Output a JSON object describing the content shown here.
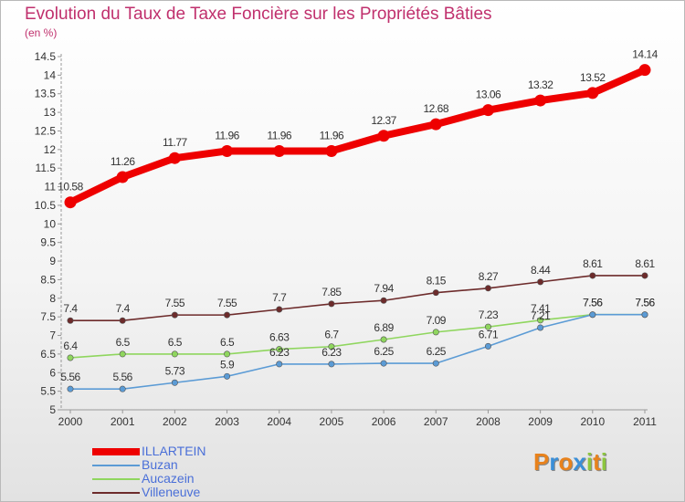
{
  "title": "Evolution du Taux de Taxe Foncière sur les Propriétés Bâties",
  "unit_label": "(en %)",
  "brand": {
    "letters": [
      "P",
      "r",
      "o",
      "x",
      "i",
      "t",
      "i"
    ],
    "colors": [
      "#e8821c",
      "#3a8fd8",
      "#e8821c",
      "#3a8fd8",
      "#8cc63f",
      "#e8821c",
      "#8cc63f"
    ]
  },
  "chart_data": {
    "type": "line",
    "title": "Evolution du Taux de Taxe Foncière sur les Propriétés Bâties",
    "ylabel": "(en %)",
    "xlabel": "",
    "ylim": [
      5,
      14.5
    ],
    "x": [
      "2000",
      "2001",
      "2002",
      "2003",
      "2004",
      "2005",
      "2006",
      "2007",
      "2008",
      "2009",
      "2010",
      "2011"
    ],
    "yticks": [
      "5",
      "5.5",
      "6",
      "6.5",
      "7",
      "7.5",
      "8",
      "8.5",
      "9",
      "9.5",
      "10",
      "10.5",
      "11",
      "11.5",
      "12",
      "12.5",
      "13",
      "13.5",
      "14",
      "14.5"
    ],
    "series": [
      {
        "name": "ILLARTEIN",
        "color": "#ee0000",
        "values": [
          10.58,
          11.26,
          11.77,
          11.96,
          11.96,
          11.96,
          12.37,
          12.68,
          13.06,
          13.32,
          13.52,
          14.14
        ],
        "labels": [
          "10.58",
          "11.26",
          "11.77",
          "11.96",
          "11.96",
          "11.96",
          "12.37",
          "12.68",
          "13.06",
          "13.32",
          "13.52",
          "14.14"
        ]
      },
      {
        "name": "Buzan",
        "color": "#5b9bd5",
        "values": [
          5.56,
          5.56,
          5.73,
          5.9,
          6.23,
          6.23,
          6.25,
          6.25,
          6.71,
          7.21,
          7.56,
          7.56
        ],
        "labels": [
          "5.56",
          "5.56",
          "5.73",
          "5.9",
          "6.23",
          "6.23",
          "6.25",
          "6.25",
          "6.71",
          "7.21",
          "7.56",
          "7.56"
        ]
      },
      {
        "name": "Aucazein",
        "color": "#8fd65e",
        "values": [
          6.4,
          6.5,
          6.5,
          6.5,
          6.63,
          6.7,
          6.89,
          7.09,
          7.23,
          7.41,
          7.56,
          7.56
        ],
        "labels": [
          "6.4",
          "6.5",
          "6.5",
          "6.5",
          "6.63",
          "6.7",
          "6.89",
          "7.09",
          "7.23",
          "7.41",
          "7.56",
          "7.56"
        ]
      },
      {
        "name": "Villeneuve",
        "color": "#6d2b2b",
        "values": [
          7.4,
          7.4,
          7.55,
          7.55,
          7.7,
          7.85,
          7.94,
          8.15,
          8.27,
          8.44,
          8.61,
          8.61
        ],
        "labels": [
          "7.4",
          "7.4",
          "7.55",
          "7.55",
          "7.7",
          "7.85",
          "7.94",
          "8.15",
          "8.27",
          "8.44",
          "8.61",
          "8.61"
        ]
      }
    ],
    "legend": "bottom-left",
    "grid": false
  }
}
